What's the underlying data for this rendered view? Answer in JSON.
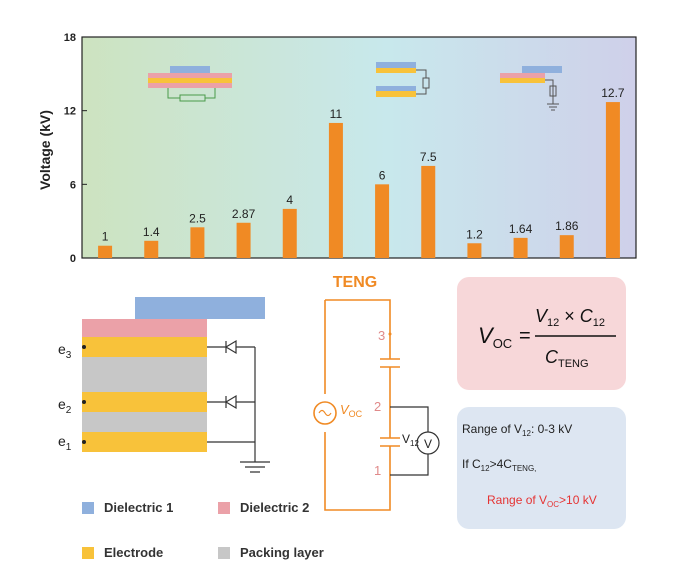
{
  "chart_data": {
    "type": "bar",
    "categories": [
      "",
      "",
      "",
      "",
      "",
      "",
      "",
      "",
      "",
      "",
      "",
      ""
    ],
    "values": [
      1,
      1.4,
      2.5,
      2.87,
      4,
      11,
      6,
      7.5,
      1.2,
      1.64,
      1.86,
      12.7
    ],
    "data_labels": [
      "1",
      "1.4",
      "2.5",
      "2.87",
      "4",
      "11",
      "6",
      "7.5",
      "1.2",
      "1.64",
      "1.86",
      "12.7"
    ],
    "ylabel": "Voltage (kV)",
    "ylim": [
      0,
      18
    ],
    "yticks": [
      "0",
      "6",
      "12",
      "18"
    ],
    "grid": false,
    "colors": {
      "bar": "#f08a24",
      "bg_left": "#cde3c0",
      "bg_mid": "#c8e8ec",
      "bg_right": "#cfd0ea"
    }
  },
  "diagram": {
    "labels": {
      "e3": "e",
      "e3_sub": "3",
      "e2": "e",
      "e2_sub": "2",
      "e1": "e",
      "e1_sub": "1"
    },
    "colors": {
      "dielectric1": "#8fb0dd",
      "dielectric2": "#eba1a8",
      "electrode": "#f8c23a",
      "packing": "#c7c7c7"
    }
  },
  "circuit": {
    "title": "TENG",
    "source_v": "V",
    "source_sub": "OC",
    "node3": "3",
    "node2": "2",
    "node1": "1",
    "meter_v": "V",
    "meter_sub": "12",
    "meter_symbol": "V",
    "color": "#f08a24"
  },
  "formula": {
    "lhs_v": "V",
    "lhs_sub": "OC",
    "eq": "=",
    "num_v1": "V",
    "num_sub1": "12",
    "num_times": " × ",
    "num_c": "C",
    "num_sub2": "12",
    "den_c": "C",
    "den_sub": "TENG",
    "bg": "#f7d7d9"
  },
  "info": {
    "line1_prefix": "Range of V",
    "line1_sub": "12",
    "line1_suffix": ": 0-3 kV",
    "line2_prefix": "If C",
    "line2_sub1": "12",
    "line2_mid": ">4C",
    "line2_sub2": "TENG,",
    "line3_prefix": "Range of V",
    "line3_sub": "OC",
    "line3_suffix": ">10 kV",
    "bg": "#dde6f2",
    "accent": "#e53333"
  },
  "legend": [
    {
      "label": "Dielectric 1",
      "color": "#8fb0dd"
    },
    {
      "label": "Dielectric 2",
      "color": "#eba1a8"
    },
    {
      "label": "Electrode",
      "color": "#f8c23a"
    },
    {
      "label": "Packing layer",
      "color": "#c7c7c7"
    }
  ]
}
